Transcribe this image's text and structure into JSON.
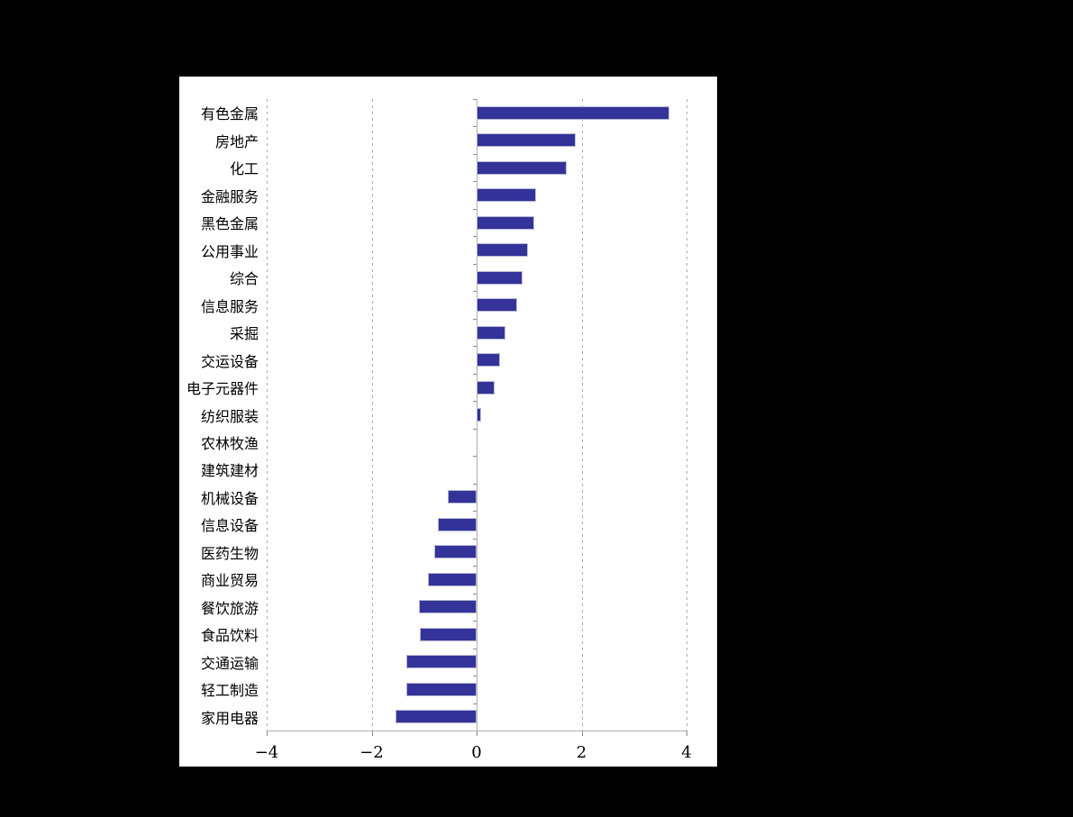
{
  "canvas": {
    "background_color": "#000000",
    "panel_background_color": "#ffffff"
  },
  "chart_data": {
    "type": "bar",
    "orientation": "horizontal",
    "title": "",
    "xlabel": "",
    "ylabel": "",
    "categories": [
      "有色金属",
      "房地产",
      "化工",
      "金融服务",
      "黑色金属",
      "公用事业",
      "综合",
      "信息服务",
      "采掘",
      "交运设备",
      "电子元器件",
      "纺织服装",
      "农林牧渔",
      "建筑建材",
      "机械设备",
      "信息设备",
      "医药生物",
      "商业贸易",
      "餐饮旅游",
      "食品饮料",
      "交通运输",
      "轻工制造",
      "家用电器"
    ],
    "values": [
      3.67,
      1.88,
      1.72,
      1.13,
      1.1,
      0.98,
      0.88,
      0.77,
      0.55,
      0.45,
      0.34,
      0.08,
      0,
      0,
      -0.55,
      -0.73,
      -0.81,
      -0.93,
      -1.1,
      -1.09,
      -1.34,
      -1.34,
      -1.54
    ],
    "xlim": [
      -4,
      4
    ],
    "x_tick_labels": [
      "−4",
      "−2",
      "0",
      "2",
      "4"
    ],
    "x_tick_values": [
      -4,
      -2,
      0,
      2,
      4
    ],
    "gridline_values": [
      -4,
      -2,
      2,
      4
    ],
    "grid_style": "dashed-vertical",
    "legend": "none",
    "bar_color": "#333399",
    "bar_border_color": "#b9b9d4",
    "axis_line_color": "#b0b0b0",
    "tick_color": "#8c8c8c",
    "gridline_color": "#ababab"
  }
}
